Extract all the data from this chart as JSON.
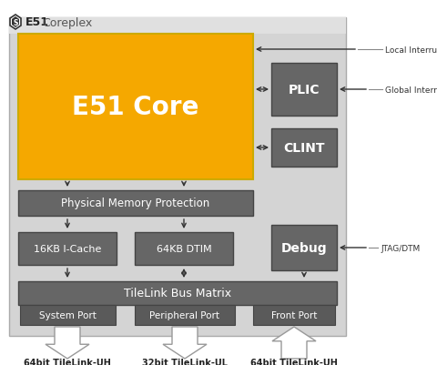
{
  "bg_color": "#d9d9d9",
  "white_bg": "#ffffff",
  "core_color": "#F5A800",
  "block_color": "#666666",
  "title_bg": "#e8e8e8",
  "core_text": "E51 Core",
  "pmp_text": "Physical Memory Protection",
  "icache_text": "16KB I-Cache",
  "dtim_text": "64KB DTIM",
  "tilelink_text": "TileLink Bus Matrix",
  "sysport_text": "System Port",
  "perport_text": "Peripheral Port",
  "frontport_text": "Front Port",
  "plic_text": "PLIC",
  "clint_text": "CLINT",
  "debug_text": "Debug",
  "local_int_text": "Local Interrupts",
  "global_int_text": "Global Interrupts",
  "jtag_text": "JTAG/DTM",
  "tl_uh_left": "64bit TileLink-UH",
  "tl_ul_mid": "32bit TileLink-UL",
  "tl_uh_right": "64bit TileLink-UH",
  "arrow_color": "#333333",
  "title_e51_color": "#222222",
  "title_coreplex_color": "#555555",
  "outer_bg": "#d4d4d4",
  "note_line_color": "#888888"
}
